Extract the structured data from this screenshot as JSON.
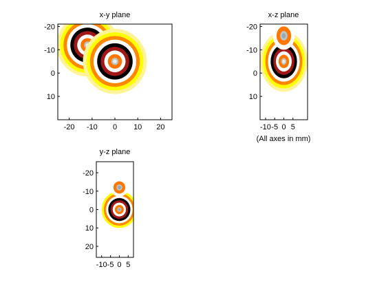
{
  "chart_data": [
    {
      "type": "heatmap",
      "title": "x-y plane",
      "xlim": [
        -25,
        25
      ],
      "ylim": [
        -21,
        20
      ],
      "y_reversed": true,
      "x_ticks": [
        -20,
        -10,
        0,
        10,
        20
      ],
      "y_ticks": [
        -20,
        -10,
        0,
        10
      ],
      "sources": [
        {
          "cx": -12,
          "cy": -12,
          "rings": 9,
          "max_r": 13.5,
          "center": "light"
        },
        {
          "cx": 0,
          "cy": -5,
          "rings": 9,
          "max_r": 14,
          "center": "light"
        }
      ]
    },
    {
      "type": "heatmap",
      "title": "x-z plane",
      "xlim": [
        -13,
        13
      ],
      "ylim": [
        -21,
        20
      ],
      "y_reversed": true,
      "x_ticks": [
        -10,
        -5,
        0,
        5
      ],
      "y_ticks": [
        -20,
        -10,
        0,
        10
      ],
      "sources": [
        {
          "cx": 0,
          "cy": -5,
          "rings": 9,
          "max_r": 13,
          "center": "light"
        },
        {
          "cx": 0,
          "cy": -16,
          "rings": 3,
          "max_r": 6,
          "center": "gray"
        }
      ]
    },
    {
      "type": "heatmap",
      "title": "y-z plane",
      "xlim": [
        -13,
        8
      ],
      "ylim": [
        -26,
        26
      ],
      "y_reversed": true,
      "x_ticks": [
        -10,
        -5,
        0,
        5
      ],
      "y_ticks": [
        -20,
        -10,
        0,
        10,
        20
      ],
      "sources": [
        {
          "cx": 0,
          "cy": 0,
          "rings": 8,
          "max_r": 10,
          "center": "gray"
        },
        {
          "cx": 0,
          "cy": -12,
          "rings": 3,
          "max_r": 5,
          "center": "gray"
        }
      ]
    }
  ],
  "note": "(All axes in mm)",
  "ring_colors": [
    "#fff39a",
    "#ffff00",
    "#ff8800",
    "#ffffff",
    "#000000",
    "#a01818",
    "#ffffff",
    "#ff7700",
    "#b8c4c8"
  ]
}
